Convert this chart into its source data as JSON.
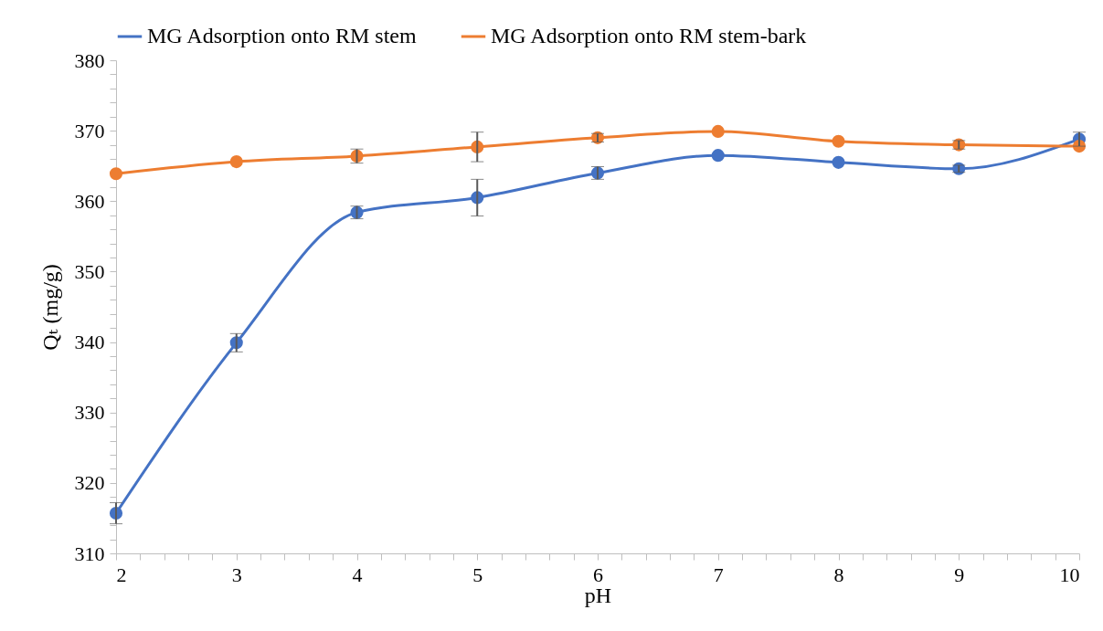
{
  "chart_data": {
    "type": "line",
    "xlabel": "pH",
    "ylabel": "Qₜ (mg/g)",
    "x": [
      2,
      3,
      4,
      5,
      6,
      7,
      8,
      9,
      10
    ],
    "series": [
      {
        "name": "MG Adsorption onto RM stem",
        "color": "#4472c4",
        "values": [
          315.7,
          339.9,
          358.4,
          360.5,
          364.0,
          366.5,
          365.5,
          364.6,
          368.8
        ],
        "errors": [
          1.5,
          1.3,
          0.9,
          2.6,
          0.9,
          null,
          null,
          0.5,
          1.0
        ]
      },
      {
        "name": "MG Adsorption onto RM stem-bark",
        "color": "#ed7d31",
        "values": [
          363.9,
          365.6,
          366.4,
          367.7,
          369.0,
          369.9,
          368.5,
          368.0,
          367.8
        ],
        "errors": [
          null,
          null,
          1.0,
          2.1,
          0.6,
          null,
          null,
          0.6,
          null
        ]
      }
    ],
    "xlim": [
      2,
      10
    ],
    "ylim": [
      310,
      380
    ],
    "xticks": [
      2,
      {
        "value": 2.2,
        "label": null
      },
      {
        "value": 2.4,
        "label": null
      },
      {
        "value": 2.6,
        "label": null
      },
      {
        "value": 2.8,
        "label": null
      },
      3,
      {
        "value": 3.2,
        "label": null
      },
      {
        "value": 3.4,
        "label": null
      },
      {
        "value": 3.6,
        "label": null
      },
      {
        "value": 3.8,
        "label": null
      },
      4,
      {
        "value": 4.2,
        "label": null
      },
      {
        "value": 4.4,
        "label": null
      },
      {
        "value": 4.6,
        "label": null
      },
      {
        "value": 4.8,
        "label": null
      },
      5,
      {
        "value": 5.2,
        "label": null
      },
      {
        "value": 5.4,
        "label": null
      },
      {
        "value": 5.6,
        "label": null
      },
      {
        "value": 5.8,
        "label": null
      },
      6,
      {
        "value": 6.2,
        "label": null
      },
      {
        "value": 6.4,
        "label": null
      },
      {
        "value": 6.6,
        "label": null
      },
      {
        "value": 6.8,
        "label": null
      },
      7,
      {
        "value": 7.2,
        "label": null
      },
      {
        "value": 7.4,
        "label": null
      },
      {
        "value": 7.6,
        "label": null
      },
      {
        "value": 7.8,
        "label": null
      },
      8,
      {
        "value": 8.2,
        "label": null
      },
      {
        "value": 8.4,
        "label": null
      },
      {
        "value": 8.6,
        "label": null
      },
      {
        "value": 8.8,
        "label": null
      },
      9,
      {
        "value": 9.2,
        "label": null
      },
      {
        "value": 9.4,
        "label": null
      },
      {
        "value": 9.6,
        "label": null
      },
      {
        "value": 9.8,
        "label": null
      },
      10
    ],
    "yticks": [
      310,
      {
        "value": 312,
        "label": null
      },
      {
        "value": 314,
        "label": null
      },
      {
        "value": 316,
        "label": null
      },
      {
        "value": 318,
        "label": null
      },
      320,
      {
        "value": 322,
        "label": null
      },
      {
        "value": 324,
        "label": null
      },
      {
        "value": 326,
        "label": null
      },
      {
        "value": 328,
        "label": null
      },
      330,
      {
        "value": 332,
        "label": null
      },
      {
        "value": 334,
        "label": null
      },
      {
        "value": 336,
        "label": null
      },
      {
        "value": 338,
        "label": null
      },
      340,
      {
        "value": 342,
        "label": null
      },
      {
        "value": 344,
        "label": null
      },
      {
        "value": 346,
        "label": null
      },
      {
        "value": 348,
        "label": null
      },
      350,
      {
        "value": 352,
        "label": null
      },
      {
        "value": 354,
        "label": null
      },
      {
        "value": 356,
        "label": null
      },
      {
        "value": 358,
        "label": null
      },
      360,
      {
        "value": 362,
        "label": null
      },
      {
        "value": 364,
        "label": null
      },
      {
        "value": 366,
        "label": null
      },
      {
        "value": 368,
        "label": null
      },
      370,
      {
        "value": 372,
        "label": null
      },
      {
        "value": 374,
        "label": null
      },
      {
        "value": 376,
        "label": null
      },
      {
        "value": 378,
        "label": null
      },
      380
    ],
    "grid": false,
    "legend": "top",
    "marker": "circle",
    "line_style": "solid"
  }
}
